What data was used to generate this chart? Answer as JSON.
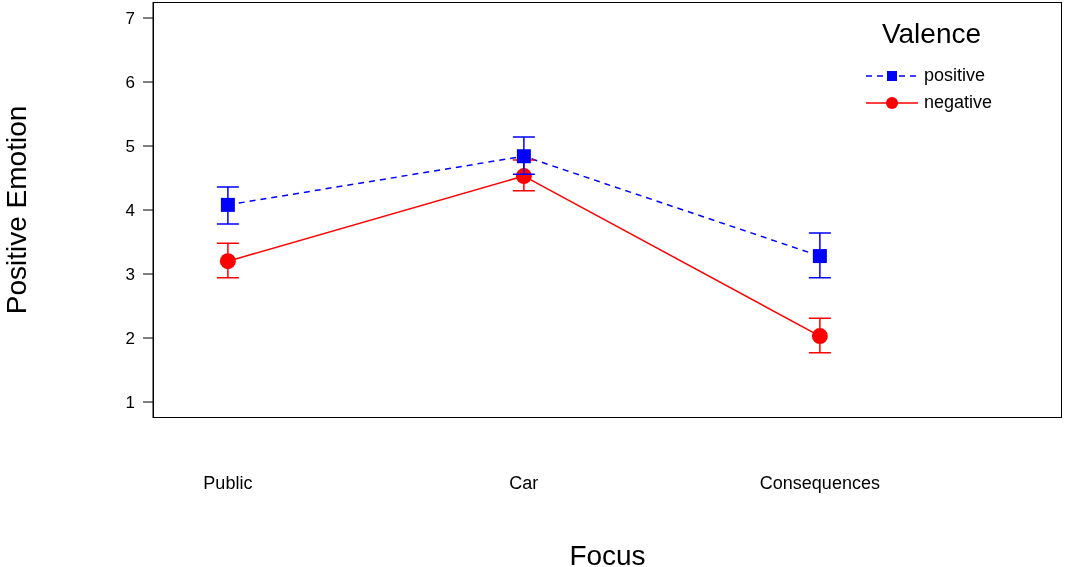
{
  "chart_data": {
    "type": "line",
    "xlabel": "Focus",
    "ylabel": "Positive Emotion",
    "legend_title": "Valence",
    "categories": [
      "Public",
      "Car",
      "Consequences"
    ],
    "ylim": [
      0.75,
      7.25
    ],
    "yticks": [
      1,
      2,
      3,
      4,
      5,
      6,
      7
    ],
    "grid": false,
    "legend": "top right",
    "series": [
      {
        "name": "positive",
        "color": "#0000ff",
        "marker": "square",
        "line_style": "dashed",
        "values": [
          4.08,
          4.84,
          3.28
        ],
        "errors": [
          [
            3.78,
            4.36
          ],
          [
            4.56,
            5.14
          ],
          [
            2.94,
            3.64
          ]
        ]
      },
      {
        "name": "negative",
        "color": "#ff0000",
        "marker": "circle",
        "line_style": "solid",
        "values": [
          3.2,
          4.53,
          2.03
        ],
        "errors": [
          [
            2.94,
            3.48
          ],
          [
            4.3,
            4.78
          ],
          [
            1.77,
            2.31
          ]
        ]
      }
    ]
  }
}
